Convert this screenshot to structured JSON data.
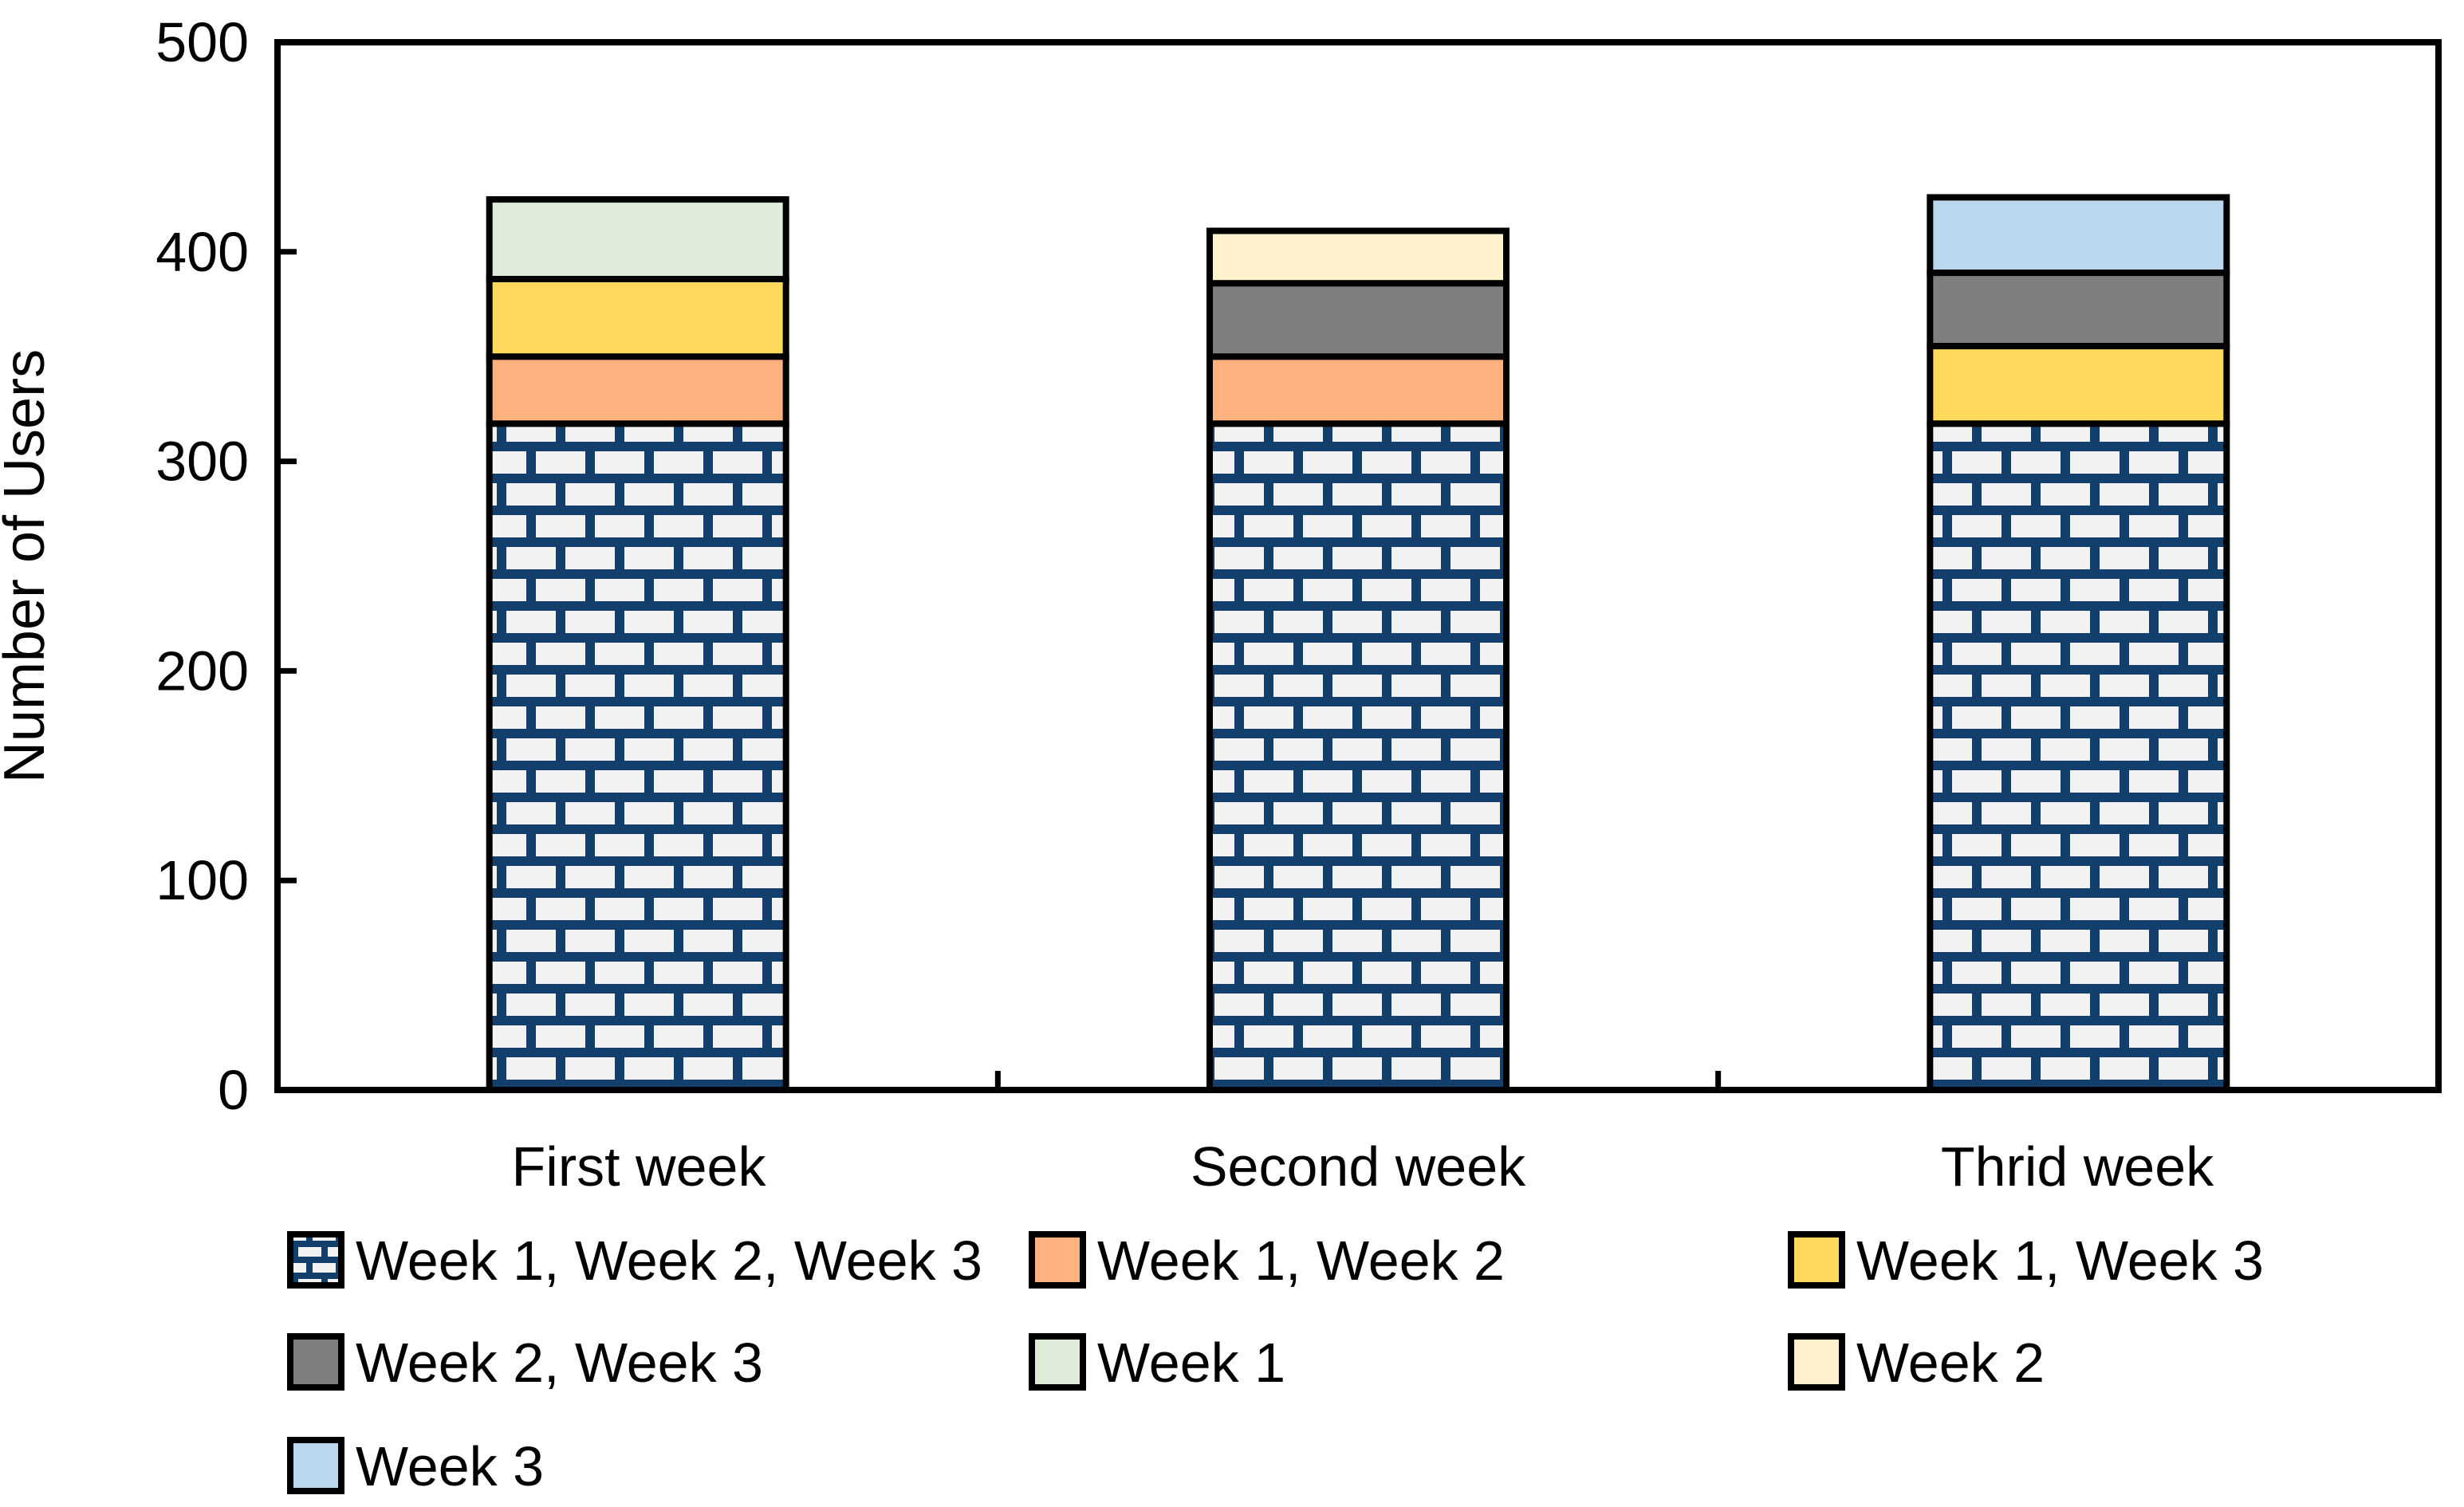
{
  "chart_data": {
    "type": "bar",
    "stacked": true,
    "title": "",
    "xlabel": "",
    "ylabel": "Number of Users",
    "ylim": [
      0,
      500
    ],
    "yticks": [
      0,
      100,
      200,
      300,
      400,
      500
    ],
    "grid": false,
    "legend_position": "bottom",
    "categories": [
      "First week",
      "Second week",
      "Thrid week"
    ],
    "series": [
      {
        "name": "Week 1, Week 2, Week 3",
        "fill": "brick-pattern",
        "values": [
          318,
          318,
          318
        ]
      },
      {
        "name": "Week 1, Week 2",
        "fill": "#FFB27E",
        "values": [
          32,
          32,
          0
        ]
      },
      {
        "name": "Week 1, Week 3",
        "fill": "#FFD95C",
        "values": [
          37,
          0,
          37
        ]
      },
      {
        "name": "Week 2, Week 3",
        "fill": "#7F7F7F",
        "values": [
          0,
          35,
          35
        ]
      },
      {
        "name": "Week 1",
        "fill": "#DFECD9",
        "values": [
          38,
          0,
          0
        ]
      },
      {
        "name": "Week 2",
        "fill": "#FFF1CB",
        "values": [
          0,
          25,
          0
        ]
      },
      {
        "name": "Week 3",
        "fill": "#BBD7EE",
        "values": [
          0,
          0,
          36
        ]
      }
    ],
    "bar_totals": [
      425,
      410,
      426
    ]
  },
  "colors": {
    "background": "#FFFFFF",
    "axis_and_text": "#000000",
    "segment_border": "#000000",
    "brick_pattern_line": "#133F6C",
    "brick_pattern_bg": "#F2F2F2"
  }
}
